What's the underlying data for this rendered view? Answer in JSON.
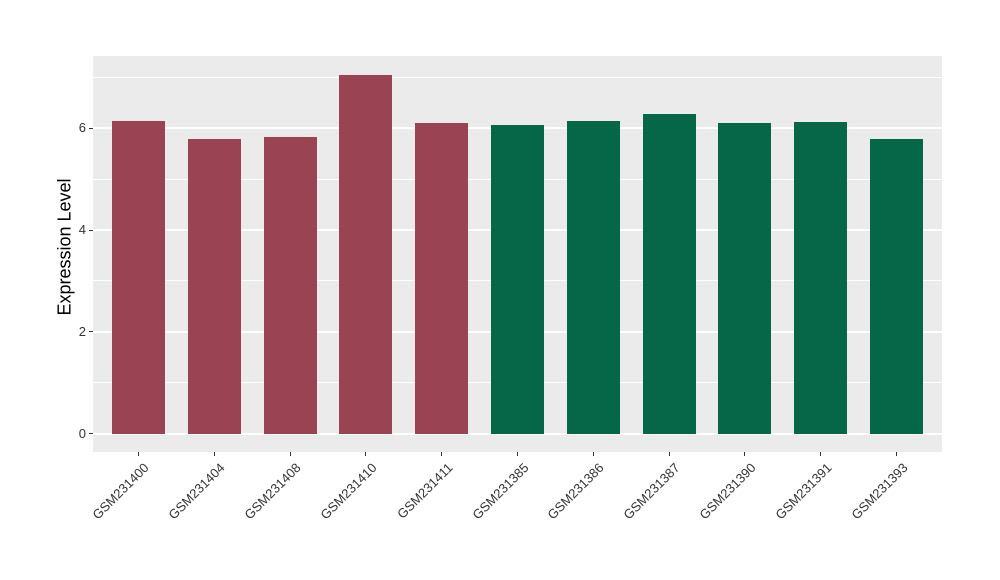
{
  "page": {
    "background": "#FFFFFF"
  },
  "chart_data": {
    "type": "bar",
    "title": "",
    "xlabel": "",
    "ylabel": "Expression Level",
    "categories": [
      "GSM231400",
      "GSM231404",
      "GSM231408",
      "GSM231410",
      "GSM231411",
      "GSM231385",
      "GSM231386",
      "GSM231387",
      "GSM231390",
      "GSM231391",
      "GSM231393"
    ],
    "values": [
      6.15,
      5.79,
      5.83,
      7.05,
      6.11,
      6.07,
      6.15,
      6.29,
      6.11,
      6.13,
      5.78
    ],
    "bar_colors": [
      "#9A4352",
      "#9A4352",
      "#9A4352",
      "#9A4352",
      "#9A4352",
      "#056648",
      "#056648",
      "#056648",
      "#056648",
      "#056648",
      "#056648"
    ],
    "yticks": [
      0,
      2,
      4,
      6
    ],
    "yticks_minor": [
      1,
      3,
      5,
      7
    ],
    "ylim": [
      -0.36,
      7.42
    ],
    "grid": "on",
    "legend": "none",
    "panel_background": "#EBEBEB",
    "grid_color": "#FFFFFF",
    "axis_text_color": "#333333",
    "axis_title_color": "#000000"
  }
}
